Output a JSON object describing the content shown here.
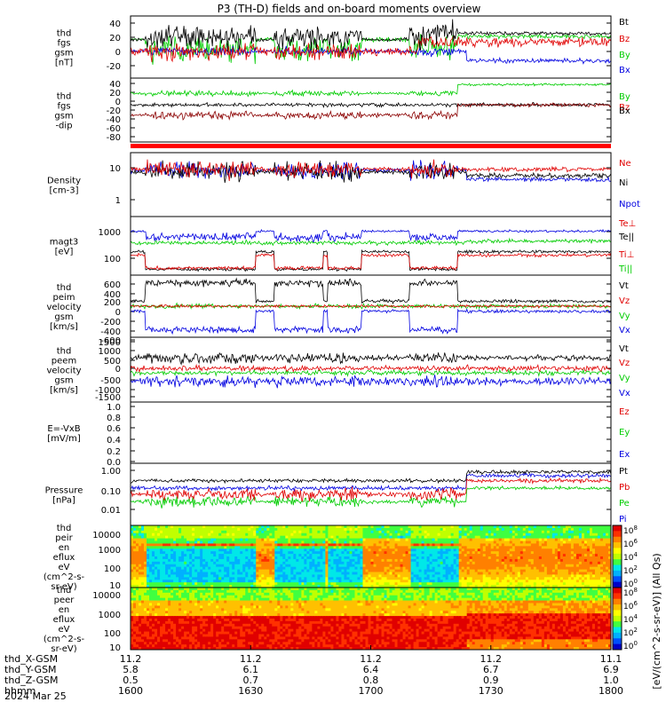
{
  "title": "P3 (TH-D) fields and on-board moments overview",
  "date_label": "2024 Mar 25",
  "colorbar_unit": "[eV/(cm^2-s-sr-eV)] (All Qs)",
  "colorbar_ticks": [
    "10^8",
    "10^6",
    "10^4",
    "10^2",
    "10^0"
  ],
  "panels": [
    {
      "ylabel": [
        "thd",
        "fgs",
        "gsm",
        "[nT]"
      ],
      "ticks": [
        "40",
        "20",
        "0",
        "-20"
      ],
      "ylim": [
        -28,
        52
      ],
      "legend": [
        {
          "text": "Bt",
          "color": "#000000"
        },
        {
          "text": "Bz",
          "color": "#e00000"
        },
        {
          "text": "By",
          "color": "#00cc00"
        },
        {
          "text": "Bx",
          "color": "#0000e0"
        }
      ]
    },
    {
      "ylabel": [
        "thd",
        "fgs",
        "gsm",
        "-dip"
      ],
      "ticks": [
        "40",
        "20",
        "0",
        "-20",
        "-40",
        "-60",
        "-80"
      ],
      "ylim": [
        -90,
        48
      ],
      "legend": [
        {
          "text": "By",
          "color": "#00cc00"
        },
        {
          "text": "Bz",
          "color": "#e00000"
        },
        {
          "text": "Bx",
          "color": "#000000"
        }
      ]
    },
    {
      "ylabel": [
        "Density",
        "[cm-3]"
      ],
      "ticks": [
        "10",
        "1"
      ],
      "ylim": [
        0.1,
        40
      ],
      "legend": [
        {
          "text": "Ne",
          "color": "#e00000"
        },
        {
          "text": "Ni",
          "color": "#000000"
        },
        {
          "text": "Npot",
          "color": "#0000e0"
        }
      ]
    },
    {
      "ylabel": [
        "magt3",
        "[eV]"
      ],
      "ticks": [
        "1000",
        "100"
      ],
      "ylim": [
        20,
        3000
      ],
      "legend": [
        {
          "text": "Te⊥",
          "color": "#e00000"
        },
        {
          "text": "Te||",
          "color": "#000000"
        },
        {
          "text": "Ti⊥",
          "color": "#e00000"
        },
        {
          "text": "Ti||",
          "color": "#00cc00"
        }
      ]
    },
    {
      "ylabel": [
        "thd",
        "peim",
        "velocity",
        "gsm",
        "[km/s]"
      ],
      "ticks": [
        "600",
        "400",
        "200",
        "0",
        "-200",
        "-400",
        "-600"
      ],
      "ylim": [
        -680,
        700
      ],
      "legend": [
        {
          "text": "Vt",
          "color": "#000000"
        },
        {
          "text": "Vz",
          "color": "#e00000"
        },
        {
          "text": "Vy",
          "color": "#00cc00"
        },
        {
          "text": "Vx",
          "color": "#0000e0"
        }
      ]
    },
    {
      "ylabel": [
        "thd",
        "peem",
        "velocity",
        "gsm",
        "[km/s]"
      ],
      "ticks": [
        "1500",
        "1000",
        "500",
        "0",
        "-500",
        "-1000",
        "-1500"
      ],
      "ylim": [
        -1550,
        1550
      ],
      "legend": [
        {
          "text": "Vt",
          "color": "#000000"
        },
        {
          "text": "Vz",
          "color": "#e00000"
        },
        {
          "text": "Vy",
          "color": "#00cc00"
        },
        {
          "text": "Vx",
          "color": "#0000e0"
        }
      ]
    },
    {
      "ylabel": [
        "E=-VxB",
        "[mV/m]"
      ],
      "ticks": [
        "1.0",
        "0.8",
        "0.6",
        "0.4",
        "0.2",
        "0.0"
      ],
      "ylim": [
        0,
        1
      ],
      "legend": [
        {
          "text": "Ez",
          "color": "#e00000"
        },
        {
          "text": "Ey",
          "color": "#00cc00"
        },
        {
          "text": "Ex",
          "color": "#0000e0"
        }
      ]
    },
    {
      "ylabel": [
        "Pressure",
        "[nPa]"
      ],
      "ticks": [
        "1.00",
        "0.10",
        "0.01"
      ],
      "ylim": [
        0.003,
        2
      ],
      "legend": [
        {
          "text": "Pt",
          "color": "#000000"
        },
        {
          "text": "Pb",
          "color": "#e00000"
        },
        {
          "text": "Pe",
          "color": "#00cc00"
        },
        {
          "text": "Pi",
          "color": "#0000e0"
        }
      ]
    },
    {
      "ylabel": [
        "thd",
        "peir",
        "en",
        "eflux",
        "eV",
        "(cm^2-s-",
        "sr-eV)"
      ],
      "ticks": [
        "10000",
        "1000",
        "100",
        "10"
      ],
      "ylim": [
        5,
        20000
      ],
      "legend": []
    },
    {
      "ylabel": [
        "thd",
        "peer",
        "en",
        "eflux",
        "eV",
        "(cm^2-s-",
        "sr-eV)"
      ],
      "ticks": [
        "10000",
        "1000",
        "100",
        "10"
      ],
      "ylim": [
        5,
        20000
      ],
      "legend": []
    }
  ],
  "xaxis_rows": [
    {
      "label": "thd_X-GSM",
      "values": [
        "11.2",
        "11.2",
        "11.2",
        "11.2",
        "11.1"
      ]
    },
    {
      "label": "thd_Y-GSM",
      "values": [
        "5.8",
        "6.1",
        "6.4",
        "6.7",
        "6.9"
      ]
    },
    {
      "label": "thd_Z-GSM",
      "values": [
        "0.5",
        "0.7",
        "0.8",
        "0.9",
        "1.0"
      ]
    },
    {
      "label": "hhmm",
      "values": [
        "1600",
        "1630",
        "1700",
        "1730",
        "1800"
      ]
    }
  ],
  "chart_data": {
    "type": "line",
    "x_range": [
      "1600",
      "1800"
    ],
    "series_regimes": "sheet-like intervals 1605–1630, 1640–1648, 1651–1657 and 1703–1712; smoother magnetosheath/plasma after ~1712"
  }
}
